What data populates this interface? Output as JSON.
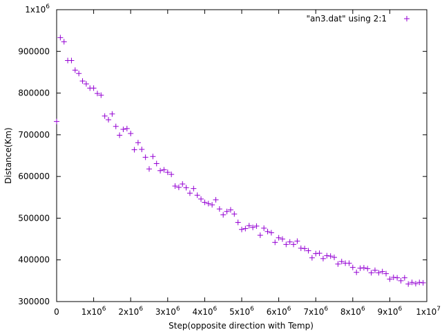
{
  "chart_data": {
    "type": "scatter",
    "title": "",
    "xlabel": "Step(opposite direction with Temp)",
    "ylabel": "Distance(Km)",
    "xlim": [
      0,
      10000000
    ],
    "ylim": [
      300000,
      1000000
    ],
    "x_ticks": [
      {
        "base": "0",
        "exp": ""
      },
      {
        "base": "1x10",
        "exp": "6"
      },
      {
        "base": "2x10",
        "exp": "6"
      },
      {
        "base": "3x10",
        "exp": "6"
      },
      {
        "base": "4x10",
        "exp": "6"
      },
      {
        "base": "5x10",
        "exp": "6"
      },
      {
        "base": "6x10",
        "exp": "6"
      },
      {
        "base": "7x10",
        "exp": "6"
      },
      {
        "base": "8x10",
        "exp": "6"
      },
      {
        "base": "9x10",
        "exp": "6"
      },
      {
        "base": "1x10",
        "exp": "7"
      }
    ],
    "y_ticks": [
      {
        "base": "300000",
        "exp": ""
      },
      {
        "base": "400000",
        "exp": ""
      },
      {
        "base": "500000",
        "exp": ""
      },
      {
        "base": "600000",
        "exp": ""
      },
      {
        "base": "700000",
        "exp": ""
      },
      {
        "base": "800000",
        "exp": ""
      },
      {
        "base": "900000",
        "exp": ""
      },
      {
        "base": "1x10",
        "exp": "6"
      }
    ],
    "legend_position": "top-right",
    "grid": false,
    "series": [
      {
        "name": "\"an3.dat\" using 2:1",
        "color": "#9400d3",
        "marker": "plus",
        "x": [
          0,
          100000,
          200000,
          300000,
          400000,
          500000,
          600000,
          700000,
          800000,
          900000,
          1000000,
          1100000,
          1200000,
          1300000,
          1400000,
          1500000,
          1600000,
          1700000,
          1800000,
          1900000,
          2000000,
          2100000,
          2200000,
          2300000,
          2400000,
          2500000,
          2600000,
          2700000,
          2800000,
          2900000,
          3000000,
          3100000,
          3200000,
          3300000,
          3400000,
          3500000,
          3600000,
          3700000,
          3800000,
          3900000,
          4000000,
          4100000,
          4200000,
          4300000,
          4400000,
          4500000,
          4600000,
          4700000,
          4800000,
          4900000,
          5000000,
          5100000,
          5200000,
          5300000,
          5400000,
          5500000,
          5600000,
          5700000,
          5800000,
          5900000,
          6000000,
          6100000,
          6200000,
          6300000,
          6400000,
          6500000,
          6600000,
          6700000,
          6800000,
          6900000,
          7000000,
          7100000,
          7200000,
          7300000,
          7400000,
          7500000,
          7600000,
          7700000,
          7800000,
          7900000,
          8000000,
          8100000,
          8200000,
          8300000,
          8400000,
          8500000,
          8600000,
          8700000,
          8800000,
          8900000,
          9000000,
          9100000,
          9200000,
          9300000,
          9400000,
          9500000,
          9600000,
          9700000,
          9800000,
          9900000
        ],
        "y": [
          732000,
          933000,
          923000,
          878000,
          878000,
          855000,
          847000,
          829000,
          822000,
          812000,
          812000,
          799000,
          795000,
          745000,
          736000,
          750000,
          720000,
          699000,
          713000,
          715000,
          703000,
          664000,
          681000,
          665000,
          646000,
          618000,
          648000,
          631000,
          614000,
          616000,
          610000,
          605000,
          577000,
          574000,
          582000,
          573000,
          560000,
          571000,
          555000,
          546000,
          538000,
          535000,
          532000,
          544000,
          522000,
          508000,
          516000,
          520000,
          510000,
          490000,
          473000,
          475000,
          482000,
          478000,
          481000,
          459000,
          476000,
          468000,
          465000,
          442000,
          453000,
          450000,
          437000,
          443000,
          437000,
          445000,
          428000,
          427000,
          422000,
          405000,
          415000,
          416000,
          403000,
          410000,
          409000,
          406000,
          390000,
          396000,
          392000,
          392000,
          382000,
          370000,
          380000,
          381000,
          379000,
          369000,
          375000,
          369000,
          372000,
          367000,
          354000,
          358000,
          357000,
          350000,
          357000,
          342000,
          346000,
          343000,
          346000,
          345000
        ]
      }
    ]
  }
}
